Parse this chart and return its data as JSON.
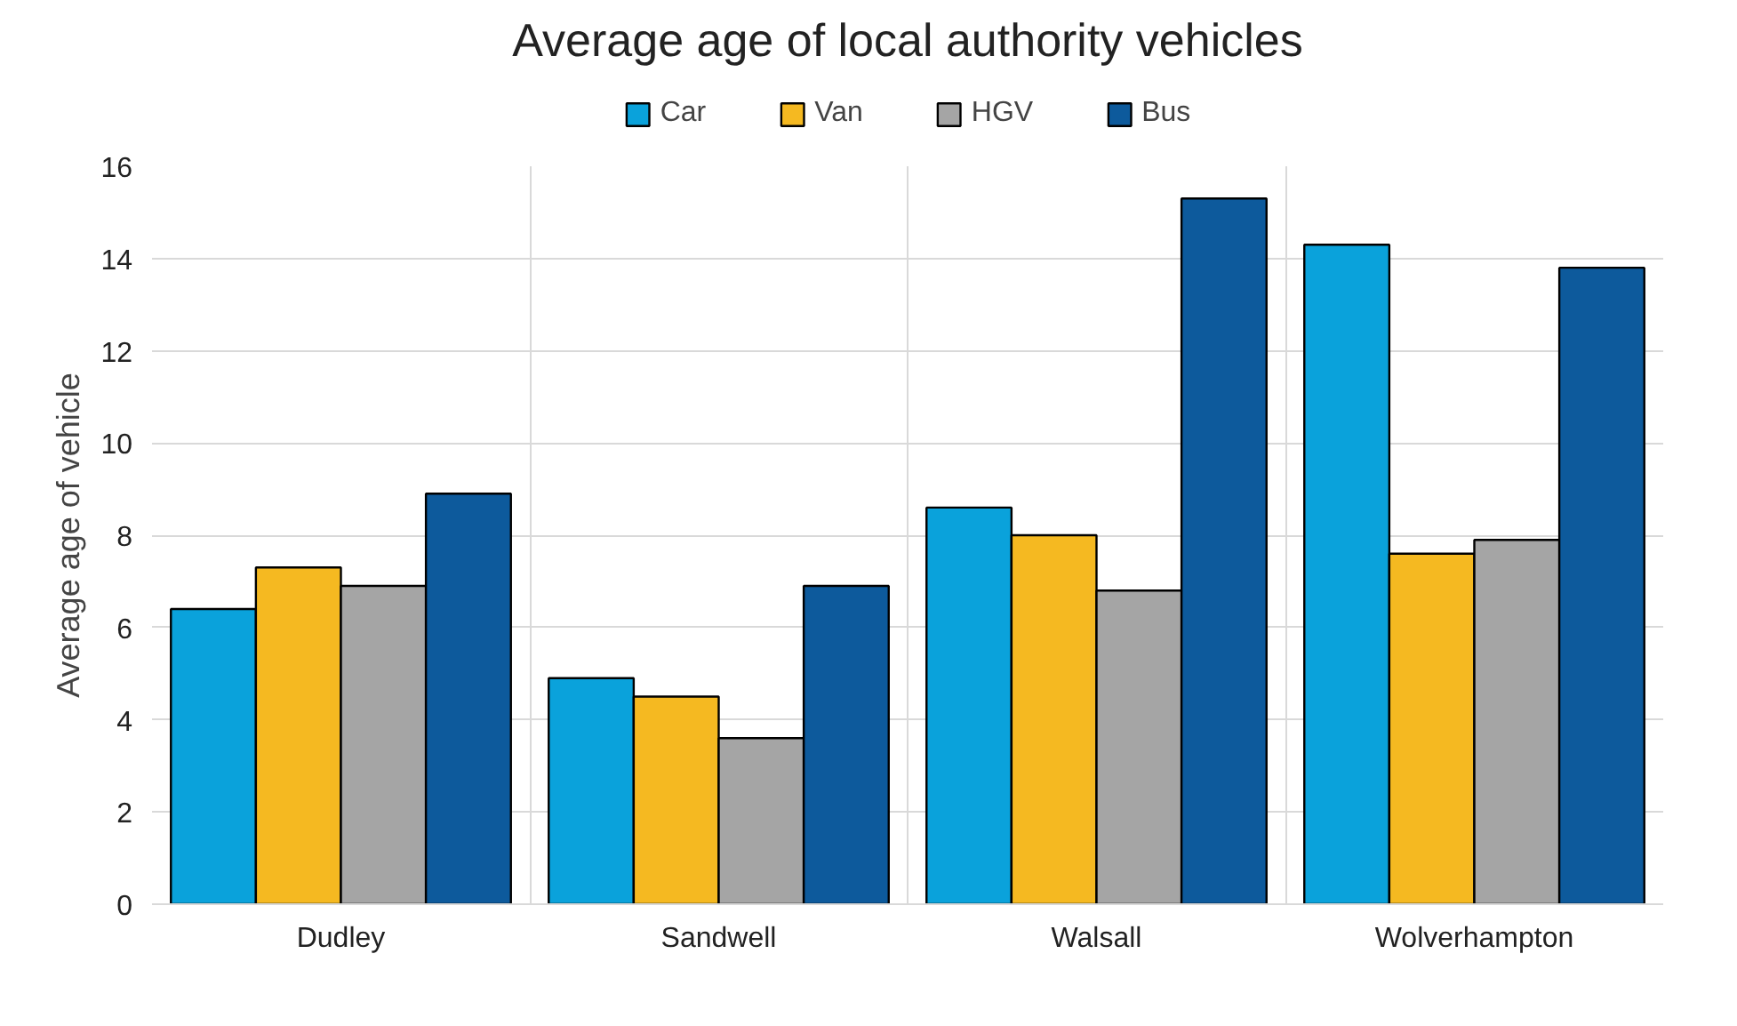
{
  "chart_data": {
    "type": "bar",
    "title": "Average age of local authority vehicles",
    "ylabel": "Average age of vehicle",
    "categories": [
      "Dudley",
      "Sandwell",
      "Walsall",
      "Wolverhampton"
    ],
    "series": [
      {
        "name": "Car",
        "color": "#0aa2db",
        "values": [
          6.4,
          4.9,
          8.6,
          14.3
        ]
      },
      {
        "name": "Van",
        "color": "#f5b921",
        "values": [
          7.3,
          4.5,
          8.0,
          7.6
        ]
      },
      {
        "name": "HGV",
        "color": "#a5a5a5",
        "values": [
          6.9,
          3.6,
          6.8,
          7.9
        ]
      },
      {
        "name": "Bus",
        "color": "#0d5a9c",
        "values": [
          8.9,
          6.9,
          15.3,
          13.8
        ]
      }
    ],
    "ylim": [
      0,
      16
    ],
    "yticks": [
      0,
      2,
      4,
      6,
      8,
      10,
      12,
      14,
      16
    ],
    "grid": true,
    "legend": "top"
  }
}
